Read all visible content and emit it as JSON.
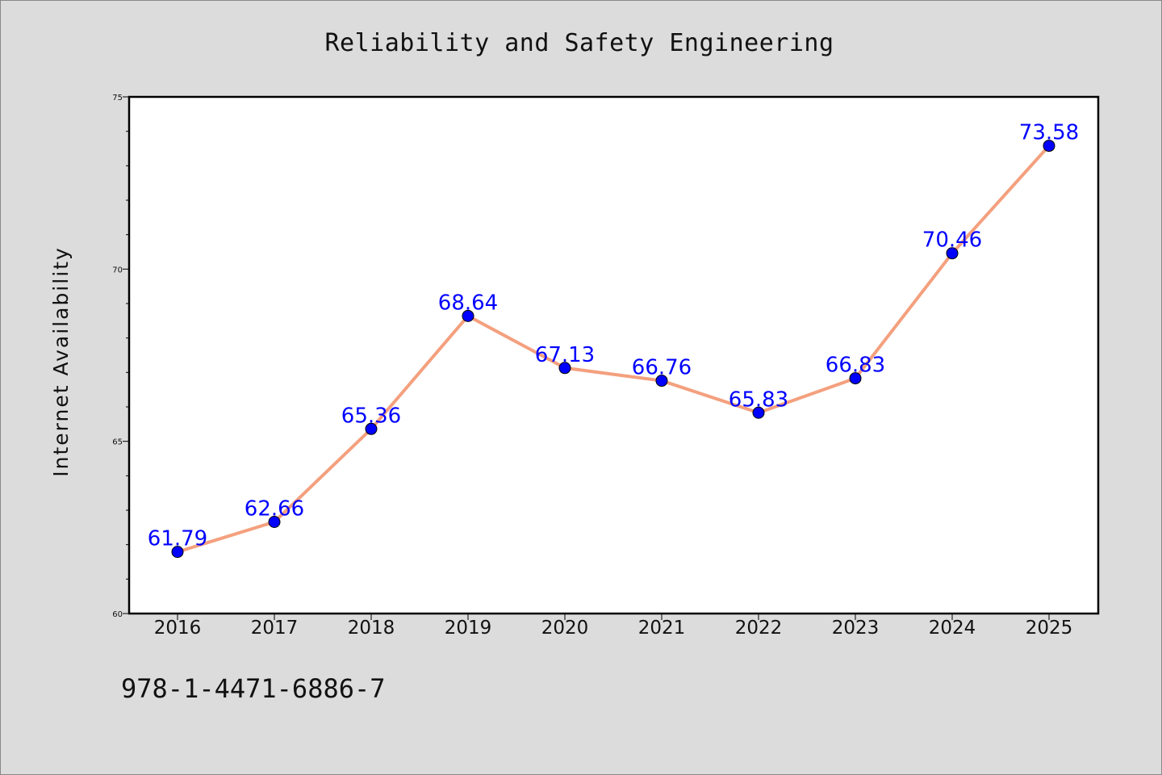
{
  "chart_data": {
    "type": "line",
    "title": "Reliability and Safety Engineering",
    "xlabel": "",
    "ylabel": "Internet Availability",
    "categories": [
      "2016",
      "2017",
      "2018",
      "2019",
      "2020",
      "2021",
      "2022",
      "2023",
      "2024",
      "2025"
    ],
    "series": [
      {
        "values": [
          61.79,
          62.66,
          65.36,
          68.64,
          67.13,
          66.76,
          65.83,
          66.83,
          70.46,
          73.58
        ],
        "data_labels": [
          "61.79",
          "62.66",
          "65.36",
          "68.64",
          "67.13",
          "66.76",
          "65.83",
          "66.83",
          "70.46",
          "73.58"
        ]
      }
    ],
    "ylim": [
      60,
      75
    ],
    "yticks": [
      "60",
      "65",
      "70",
      "75"
    ],
    "grid": false,
    "legend": "none",
    "colors": {
      "line": "#f4a07e",
      "marker": "#0000ff",
      "data_label": "#0000ff",
      "plot_background": "#ffffff",
      "page_background": "#dcdcdc"
    }
  },
  "footer": {
    "isbn": "978-1-4471-6886-7"
  }
}
